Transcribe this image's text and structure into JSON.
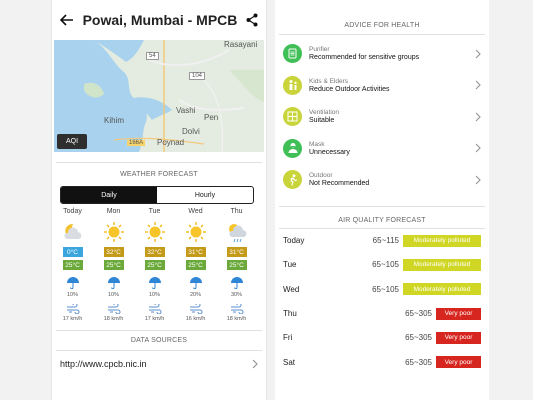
{
  "left": {
    "header": {
      "title": "Powai, Mumbai - MPCB"
    },
    "map": {
      "labels": [
        "Rasayani",
        "54",
        "104",
        "Vashi",
        "Pen",
        "Kihim",
        "Dolvi",
        "Poynad",
        "166A"
      ],
      "aqi_button": "AQI"
    },
    "weather_forecast": {
      "title": "WEATHER FORECAST",
      "tabs": [
        "Daily",
        "Hourly"
      ],
      "days": [
        {
          "day": "Today",
          "icon": "moon-cloud-icon",
          "high": "0°C",
          "high_color": "#3aa6dd",
          "low": "25°C",
          "rain": "10%",
          "wind": "17 km/h"
        },
        {
          "day": "Mon",
          "icon": "sun-icon",
          "high": "32°C",
          "high_color": "#c49a19",
          "low": "25°C",
          "rain": "10%",
          "wind": "18 km/h"
        },
        {
          "day": "Tue",
          "icon": "sun-icon",
          "high": "32°C",
          "high_color": "#c49a19",
          "low": "25°C",
          "rain": "10%",
          "wind": "17 km/h"
        },
        {
          "day": "Wed",
          "icon": "sun-icon",
          "high": "31°C",
          "high_color": "#c49a19",
          "low": "25°C",
          "rain": "20%",
          "wind": "16 km/h"
        },
        {
          "day": "Thu",
          "icon": "sun-rain-cloud-icon",
          "high": "31°C",
          "high_color": "#c49a19",
          "low": "25°C",
          "rain": "30%",
          "wind": "18 km/h"
        }
      ],
      "low_color": "#6aa93a"
    },
    "data_sources": {
      "title": "DATA SOURCES",
      "link": "http://www.cpcb.nic.in"
    }
  },
  "right": {
    "advice": {
      "title": "ADVICE FOR HEALTH",
      "items": [
        {
          "category": "Purifier",
          "value": "Recommended for sensitive groups",
          "icon": "purifier-icon",
          "color": "#3fbf55"
        },
        {
          "category": "Kids & Elders",
          "value": "Reduce Outdoor Activities",
          "icon": "family-icon",
          "color": "#c9d43a"
        },
        {
          "category": "Ventilation",
          "value": "Suitable",
          "icon": "window-icon",
          "color": "#c9d43a"
        },
        {
          "category": "Mask",
          "value": "Unnecessary",
          "icon": "mask-person-icon",
          "color": "#3fbf55"
        },
        {
          "category": "Outdoor",
          "value": "Not Recommended",
          "icon": "runner-icon",
          "color": "#c9d43a"
        }
      ]
    },
    "air_quality": {
      "title": "AIR QUALITY FORECAST",
      "rows": [
        {
          "day": "Today",
          "range": "65~115",
          "label": "Moderately polluted",
          "color": "#cfd624"
        },
        {
          "day": "Tue",
          "range": "65~105",
          "label": "Moderately polluted",
          "color": "#cfd624"
        },
        {
          "day": "Wed",
          "range": "65~105",
          "label": "Moderately polluted",
          "color": "#cfd624"
        },
        {
          "day": "Thu",
          "range": "65~305",
          "label": "Very poor",
          "color": "#d6261f"
        },
        {
          "day": "Fri",
          "range": "65~305",
          "label": "Very poor",
          "color": "#d6261f"
        },
        {
          "day": "Sat",
          "range": "65~305",
          "label": "Very poor",
          "color": "#d6261f"
        }
      ]
    }
  }
}
